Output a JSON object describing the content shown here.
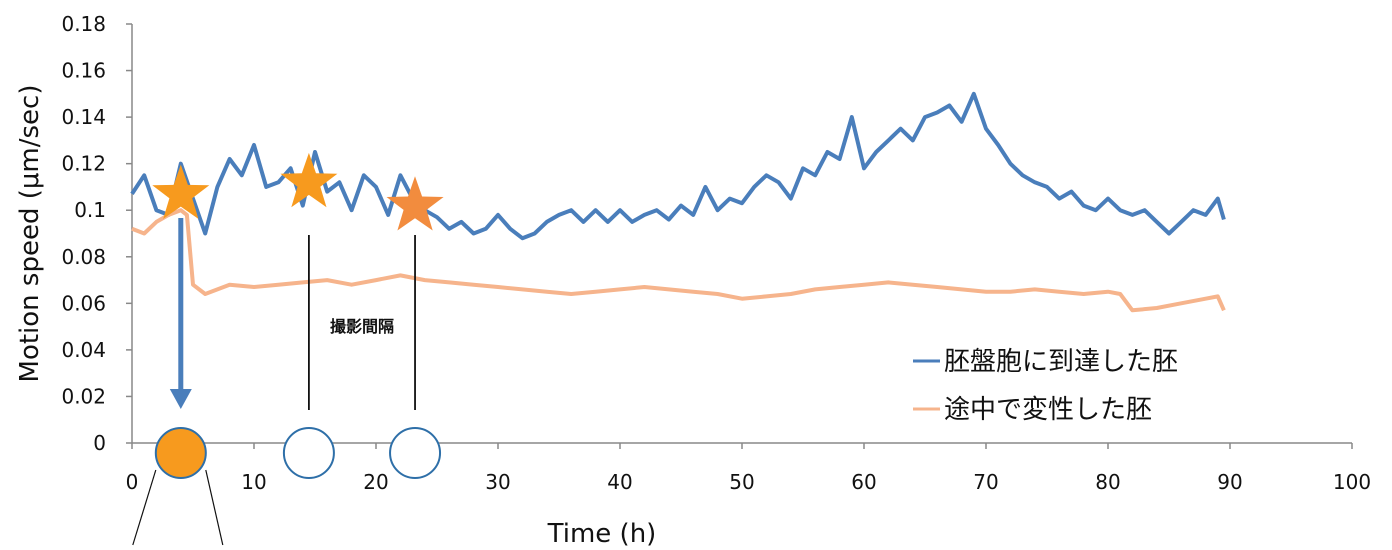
{
  "chart_data": {
    "type": "line",
    "xlabel": "Time (h)",
    "ylabel": "Motion speed (μm/sec)",
    "xlim": [
      0,
      100
    ],
    "ylim": [
      0,
      0.18
    ],
    "x_ticks": [
      "0",
      "10",
      "20",
      "30",
      "40",
      "50",
      "60",
      "70",
      "80",
      "90",
      "100"
    ],
    "y_ticks": [
      "0",
      "0.02",
      "0.04",
      "0.06",
      "0.08",
      "0.1",
      "0.12",
      "0.14",
      "0.16",
      "0.18"
    ],
    "grid": false,
    "legend_position": "bottom-right",
    "series": [
      {
        "name": "胚盤胞に到達した胚",
        "color": "#4a7ebb",
        "x": [
          0,
          1,
          2,
          3,
          4,
          5,
          6,
          7,
          8,
          9,
          10,
          11,
          12,
          13,
          14,
          15,
          16,
          17,
          18,
          19,
          20,
          21,
          22,
          23,
          24,
          25,
          26,
          27,
          28,
          29,
          30,
          31,
          32,
          33,
          34,
          35,
          36,
          37,
          38,
          39,
          40,
          41,
          42,
          43,
          44,
          45,
          46,
          47,
          48,
          49,
          50,
          51,
          52,
          53,
          54,
          55,
          56,
          57,
          58,
          59,
          60,
          61,
          62,
          63,
          64,
          65,
          66,
          67,
          68,
          69,
          70,
          71,
          72,
          73,
          74,
          75,
          76,
          77,
          78,
          79,
          80,
          81,
          82,
          83,
          84,
          85,
          86,
          87,
          88,
          89,
          89.5
        ],
        "y": [
          0.107,
          0.115,
          0.1,
          0.098,
          0.12,
          0.105,
          0.09,
          0.11,
          0.122,
          0.115,
          0.128,
          0.11,
          0.112,
          0.118,
          0.102,
          0.125,
          0.108,
          0.112,
          0.1,
          0.115,
          0.11,
          0.098,
          0.115,
          0.105,
          0.1,
          0.097,
          0.092,
          0.095,
          0.09,
          0.092,
          0.098,
          0.092,
          0.088,
          0.09,
          0.095,
          0.098,
          0.1,
          0.095,
          0.1,
          0.095,
          0.1,
          0.095,
          0.098,
          0.1,
          0.096,
          0.102,
          0.098,
          0.11,
          0.1,
          0.105,
          0.103,
          0.11,
          0.115,
          0.112,
          0.105,
          0.118,
          0.115,
          0.125,
          0.122,
          0.14,
          0.118,
          0.125,
          0.13,
          0.135,
          0.13,
          0.14,
          0.142,
          0.145,
          0.138,
          0.15,
          0.135,
          0.128,
          0.12,
          0.115,
          0.112,
          0.11,
          0.105,
          0.108,
          0.102,
          0.1,
          0.105,
          0.1,
          0.098,
          0.1,
          0.095,
          0.09,
          0.095,
          0.1,
          0.098,
          0.105,
          0.096
        ]
      },
      {
        "name": "途中で変性した胚",
        "color": "#f6b48c",
        "x": [
          0,
          1,
          2,
          3,
          4,
          4.5,
          5,
          6,
          7,
          8,
          10,
          12,
          14,
          16,
          18,
          20,
          22,
          24,
          26,
          28,
          30,
          32,
          34,
          36,
          38,
          40,
          42,
          44,
          46,
          48,
          50,
          52,
          54,
          56,
          58,
          60,
          62,
          64,
          66,
          68,
          70,
          72,
          74,
          76,
          78,
          80,
          81,
          82,
          84,
          86,
          88,
          89,
          89.5
        ],
        "y": [
          0.092,
          0.09,
          0.095,
          0.098,
          0.1,
          0.098,
          0.068,
          0.064,
          0.066,
          0.068,
          0.067,
          0.068,
          0.069,
          0.07,
          0.068,
          0.07,
          0.072,
          0.07,
          0.069,
          0.068,
          0.067,
          0.066,
          0.065,
          0.064,
          0.065,
          0.066,
          0.067,
          0.066,
          0.065,
          0.064,
          0.062,
          0.063,
          0.064,
          0.066,
          0.067,
          0.068,
          0.069,
          0.068,
          0.067,
          0.066,
          0.065,
          0.065,
          0.066,
          0.065,
          0.064,
          0.065,
          0.064,
          0.057,
          0.058,
          0.06,
          0.062,
          0.063,
          0.057
        ]
      }
    ],
    "annotations": {
      "interval_label": "撮影間隔",
      "stars": [
        {
          "x": 4,
          "y": 0.105,
          "color": "#f79a1e"
        },
        {
          "x": 14.5,
          "y": 0.11,
          "color": "#f79a1e"
        },
        {
          "x": 23.2,
          "y": 0.1,
          "color": "#f28c3e"
        }
      ],
      "circles": [
        {
          "x": 4,
          "fill": "#f79a1e"
        },
        {
          "x": 14.5,
          "fill": "#ffffff"
        },
        {
          "x": 23.2,
          "fill": "#ffffff"
        }
      ]
    }
  }
}
